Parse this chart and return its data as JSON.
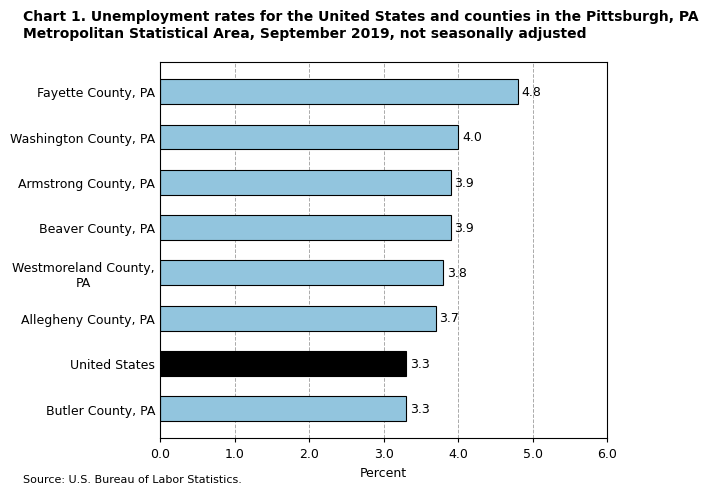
{
  "categories": [
    "Butler County, PA",
    "United States",
    "Allegheny County, PA",
    "Westmoreland County,\nPA",
    "Beaver County, PA",
    "Armstrong County, PA",
    "Washington County, PA",
    "Fayette County, PA"
  ],
  "values": [
    3.3,
    3.3,
    3.7,
    3.8,
    3.9,
    3.9,
    4.0,
    4.8
  ],
  "bar_colors": [
    "#92c5de",
    "#000000",
    "#92c5de",
    "#92c5de",
    "#92c5de",
    "#92c5de",
    "#92c5de",
    "#92c5de"
  ],
  "edge_color": "#000000",
  "title_line1": "Chart 1. Unemployment rates for the United States and counties in the Pittsburgh, PA",
  "title_line2": "Metropolitan Statistical Area, September 2019, not seasonally adjusted",
  "xlabel": "Percent",
  "source": "Source: U.S. Bureau of Labor Statistics.",
  "xlim": [
    0,
    6.0
  ],
  "xticks": [
    0.0,
    1.0,
    2.0,
    3.0,
    4.0,
    5.0,
    6.0
  ],
  "xtick_labels": [
    "0.0",
    "1.0",
    "2.0",
    "3.0",
    "4.0",
    "5.0",
    "6.0"
  ],
  "grid_color": "#aaaaaa",
  "background_color": "#ffffff",
  "bar_height": 0.55,
  "title_fontsize": 10.0,
  "label_fontsize": 9.0,
  "tick_fontsize": 9.0,
  "value_fontsize": 9.0,
  "source_fontsize": 8.0
}
